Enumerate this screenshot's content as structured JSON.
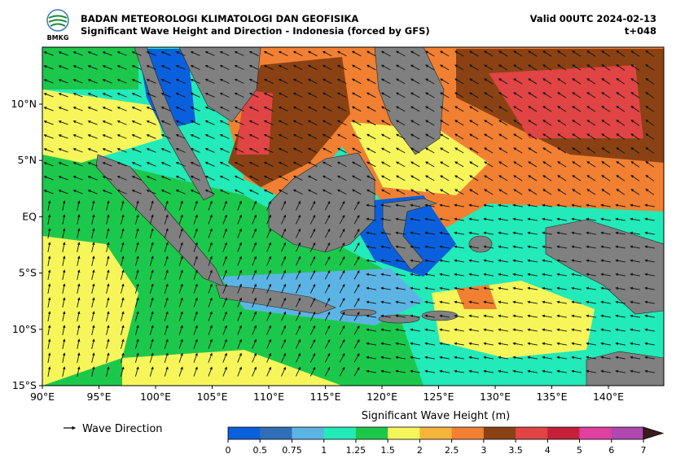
{
  "header": {
    "agency": "BADAN METEOROLOGI KLIMATOLOGI DAN GEOFISIKA",
    "subtitle": "Significant Wave Height and Direction - Indonesia (forced by GFS)",
    "valid": "Valid 00UTC 2024-02-13",
    "lead": "t+048",
    "logo_text": "BMKG"
  },
  "map": {
    "lat_labels": [
      "10°N",
      "5°N",
      "EQ",
      "5°S",
      "10°S",
      "15°S"
    ],
    "lon_labels": [
      "90°E",
      "95°E",
      "100°E",
      "105°E",
      "110°E",
      "115°E",
      "120°E",
      "125°E",
      "130°E",
      "135°E",
      "140°E"
    ]
  },
  "legend": {
    "arrow_label": "Wave Direction"
  },
  "colorbar": {
    "title": "Significant Wave Height (m)",
    "ticks": [
      0,
      0.5,
      0.75,
      1,
      1.25,
      1.5,
      2,
      2.5,
      3,
      3.5,
      4,
      5,
      6,
      7
    ],
    "colors": [
      "#0a5fdc",
      "#2f6fb8",
      "#5cb4e4",
      "#22eab8",
      "#1cc84c",
      "#f6f65a",
      "#f6b43a",
      "#f28032",
      "#8a4214",
      "#e04444",
      "#c4203a",
      "#e040a0",
      "#b048b0",
      "#3a1c1c"
    ]
  }
}
